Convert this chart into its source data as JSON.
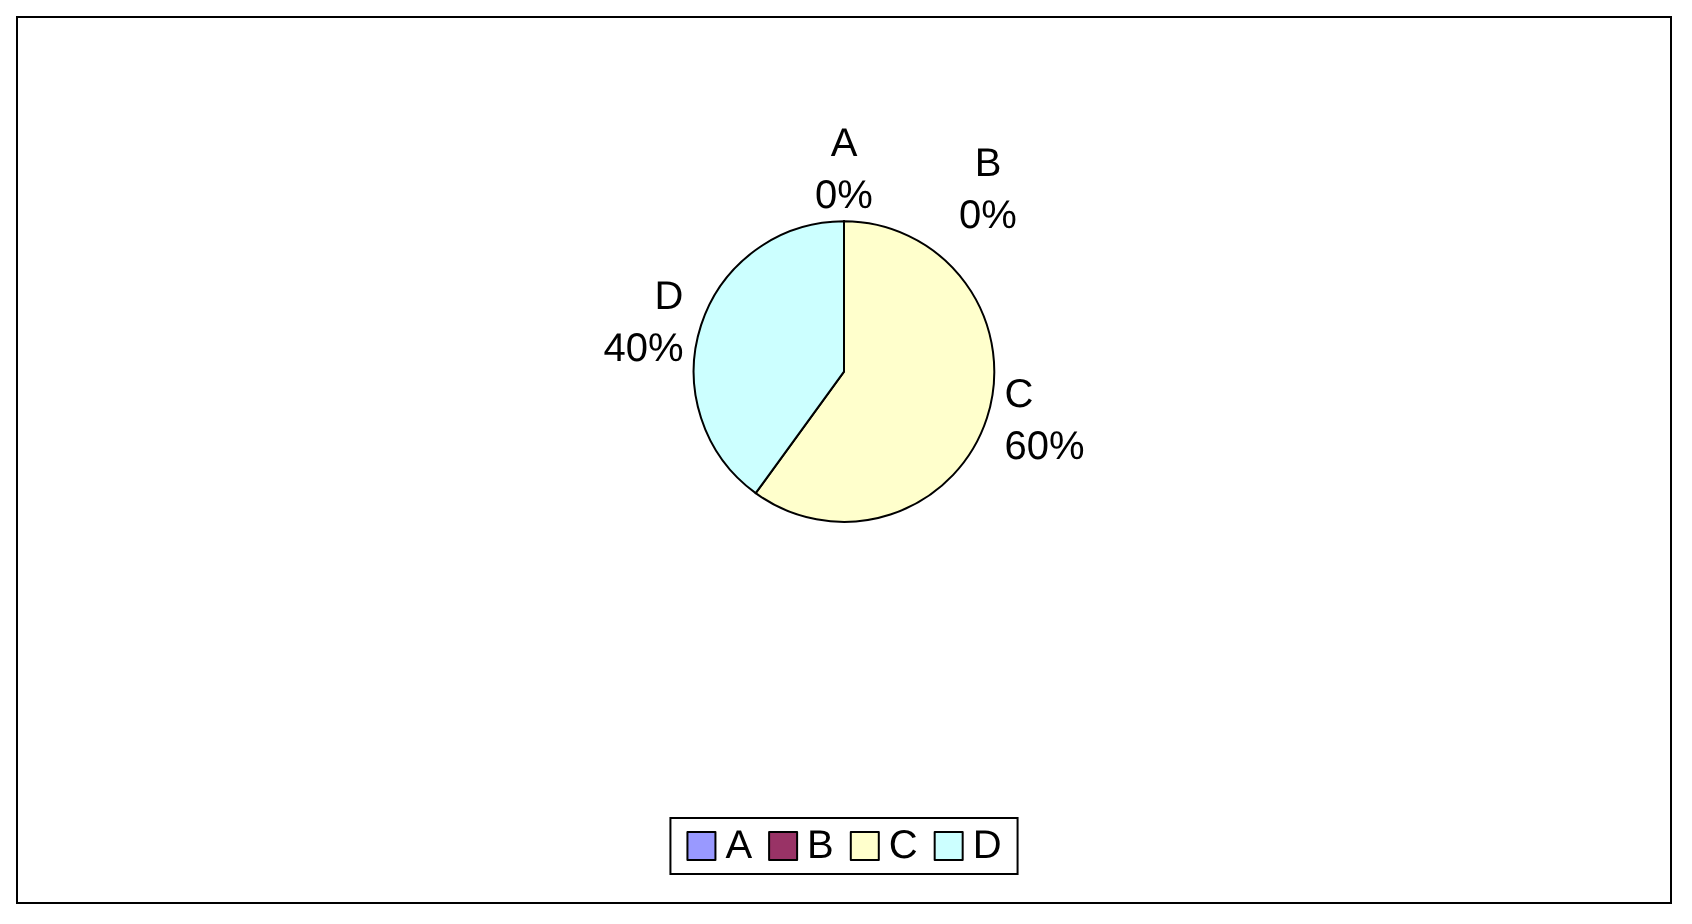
{
  "chart_data": {
    "type": "pie",
    "categories": [
      "A",
      "B",
      "C",
      "D"
    ],
    "values": [
      0,
      0,
      60,
      40
    ],
    "colors": [
      "#9999ff",
      "#993366",
      "#ffffcc",
      "#ccffff"
    ],
    "value_labels": [
      "0%",
      "0%",
      "60%",
      "40%"
    ],
    "legend": "bottom"
  }
}
